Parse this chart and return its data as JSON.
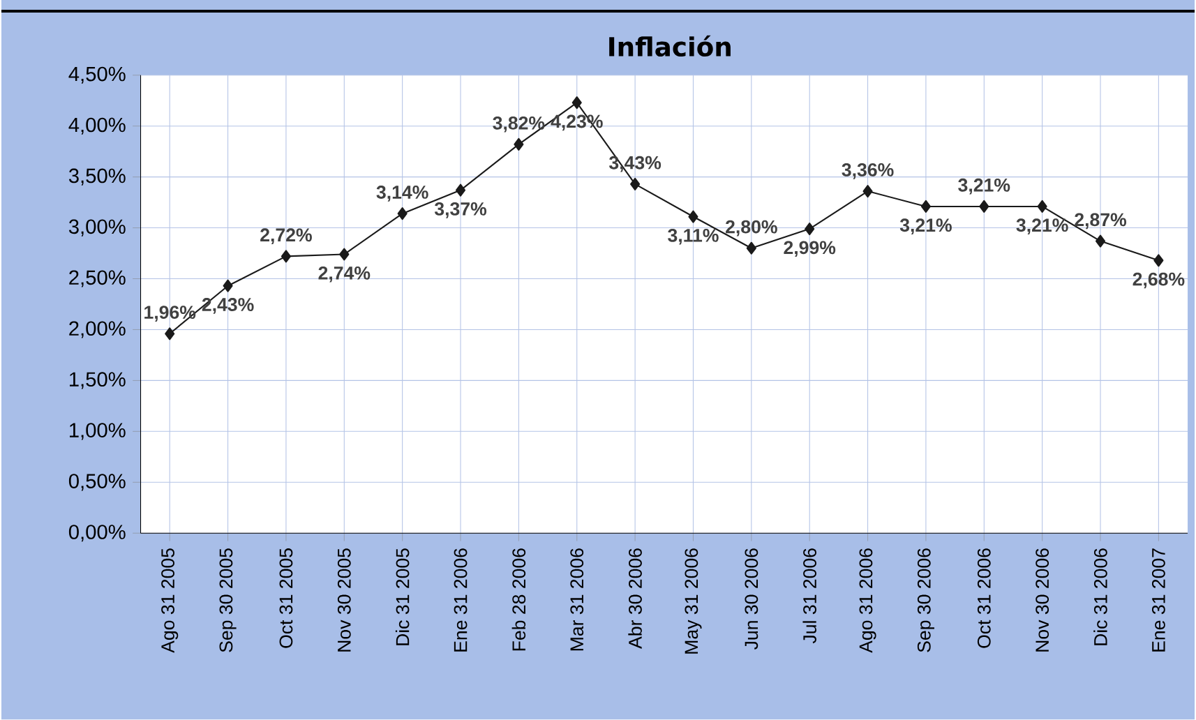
{
  "chart_data": {
    "type": "line",
    "title": "Inflación",
    "categories": [
      "Ago 31 2005",
      "Sep 30 2005",
      "Oct 31 2005",
      "Nov 30 2005",
      "Dic 31 2005",
      "Ene 31 2006",
      "Feb 28 2006",
      "Mar 31 2006",
      "Abr 30 2006",
      "May 31 2006",
      "Jun 30 2006",
      "Jul 31 2006",
      "Ago 31 2006",
      "Sep 30 2006",
      "Oct 31 2006",
      "Nov 30 2006",
      "Dic 31 2006",
      "Ene 31 2007"
    ],
    "series": [
      {
        "color": "#1a1a1a",
        "values": [
          1.96,
          2.43,
          2.72,
          2.74,
          3.14,
          3.37,
          3.82,
          4.23,
          3.43,
          3.11,
          2.8,
          2.99,
          3.36,
          3.21,
          3.21,
          3.21,
          2.87,
          2.68
        ],
        "value_labels": [
          "1,96%",
          "2,43%",
          "2,72%",
          "2,74%",
          "3,14%",
          "3,37%",
          "3,82%",
          "4,23%",
          "3,43%",
          "3,11%",
          "2,80%",
          "2,99%",
          "3,36%",
          "3,21%",
          "3,21%",
          "3,21%",
          "2,87%",
          "2,68%"
        ]
      }
    ],
    "ylim": [
      0,
      4.5
    ],
    "yticks": [
      {
        "value": 0,
        "label": "0,00%"
      },
      {
        "value": 0.5,
        "label": "0,50%"
      },
      {
        "value": 1,
        "label": "1,00%"
      },
      {
        "value": 1.5,
        "label": "1,50%"
      },
      {
        "value": 2,
        "label": "2,00%"
      },
      {
        "value": 2.5,
        "label": "2,50%"
      },
      {
        "value": 3,
        "label": "3,00%"
      },
      {
        "value": 3.5,
        "label": "3,50%"
      },
      {
        "value": 4,
        "label": "4,00%"
      },
      {
        "value": 4.5,
        "label": "4,50%"
      }
    ],
    "grid": true,
    "marker": "diamond",
    "line_style": "solid"
  }
}
